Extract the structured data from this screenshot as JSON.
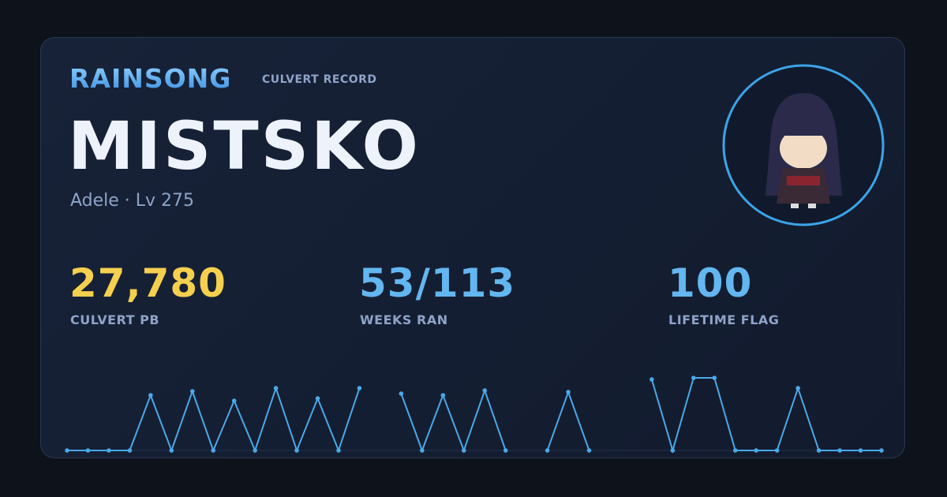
{
  "header": {
    "world": "RAINSONG",
    "subtitle": "CULVERT RECORD",
    "name": "MISTSKO",
    "class_level": "Adele · Lv 275"
  },
  "stats": [
    {
      "value": "27,780",
      "label": "CULVERT PB",
      "color": "#f5cf4e"
    },
    {
      "value": "53/113",
      "label": "WEEKS RAN",
      "color": "#63b6f0"
    },
    {
      "value": "100",
      "label": "LIFETIME FLAG",
      "color": "#63b6f0"
    }
  ],
  "chart_data": {
    "type": "line",
    "color": "#4aa8e8",
    "highlight_color": "#f5cf4e",
    "values": [
      0,
      0,
      0,
      0,
      21140,
      0,
      22650,
      0,
      19020,
      0,
      23850,
      0,
      19930,
      0,
      23850,
      null,
      21740,
      0,
      21140,
      0,
      22950,
      0,
      null,
      0,
      22350,
      0,
      null,
      null,
      27180,
      0,
      27780,
      27780,
      0,
      0,
      0,
      23850,
      0,
      0,
      0,
      0
    ]
  }
}
